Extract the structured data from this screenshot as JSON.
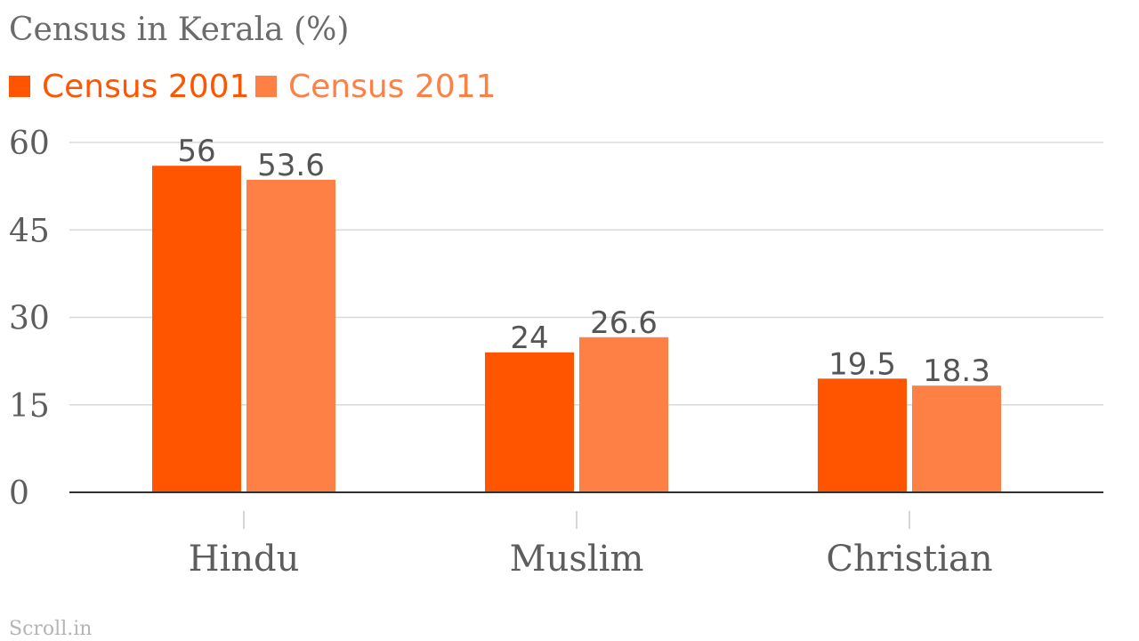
{
  "chart_data": {
    "type": "bar",
    "title": "Census in Kerala (%)",
    "categories": [
      "Hindu",
      "Muslim",
      "Christian"
    ],
    "series": [
      {
        "name": "Census 2001",
        "values": [
          56,
          24,
          19.5
        ],
        "color": "#ff5500"
      },
      {
        "name": "Census 2011",
        "values": [
          53.6,
          26.6,
          18.3
        ],
        "color": "#ff8045"
      }
    ],
    "y_ticks": [
      "0",
      "15",
      "30",
      "45",
      "60"
    ],
    "ylim": [
      0,
      60
    ],
    "grid": true,
    "legend_position": "top-left",
    "xlabel": "",
    "ylabel": ""
  },
  "source": "Scroll.in"
}
